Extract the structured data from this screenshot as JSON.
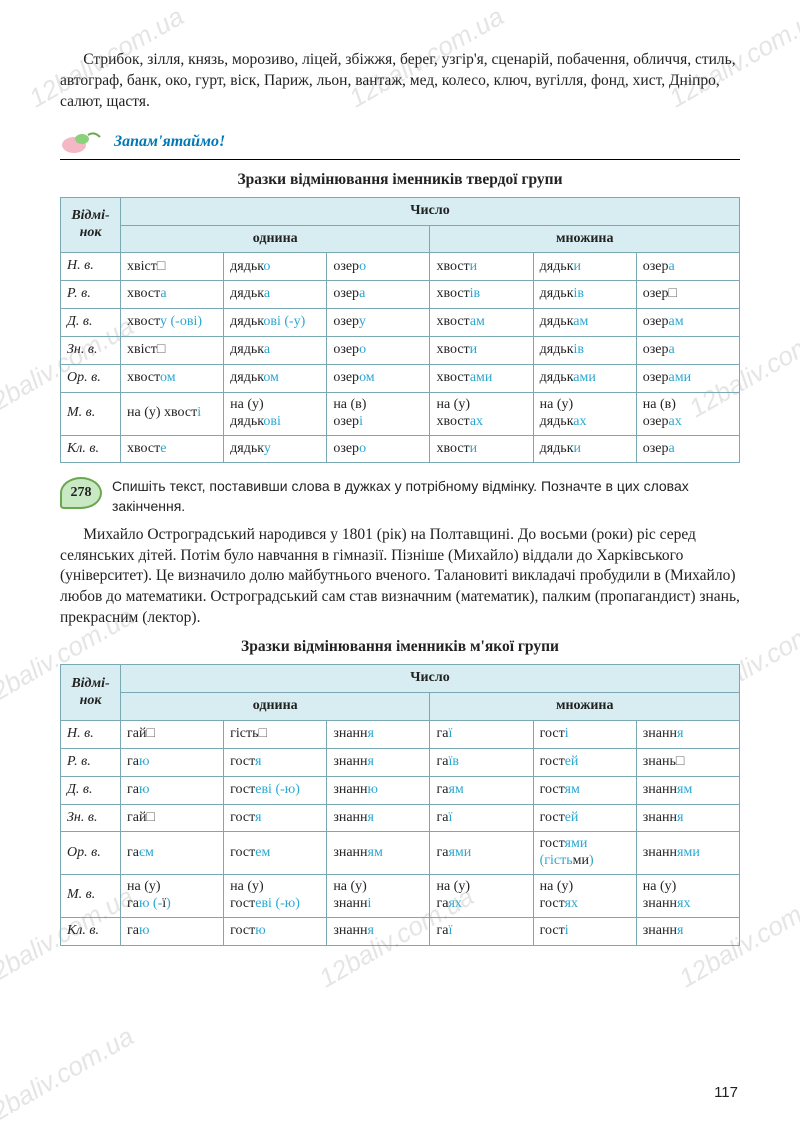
{
  "intro_text": "Стрибок, зілля, князь, морозиво, ліцей, збіжжя, берег, узгір'я, сценарій, побачення, обличчя, стиль, автограф, банк, око, гурт, віск, Париж, льон, вантаж, мед, колесо, ключ, вугілля, фонд, хист, Дніпро, салют, щастя.",
  "remember_label": "Запам'ятаймо!",
  "table1_title": "Зразки відмінювання іменників твердої групи",
  "headers": {
    "case": "Відмі-\nнок",
    "number": "Число",
    "sing": "однина",
    "plur": "множина"
  },
  "cases": [
    "Н. в.",
    "Р. в.",
    "Д. в.",
    "Зн. в.",
    "Ор. в.",
    "М. в.",
    "Кл. в."
  ],
  "t1": {
    "r0": [
      [
        "хвіст",
        "□"
      ],
      [
        "дядьк",
        "о"
      ],
      [
        "озер",
        "о"
      ],
      [
        "хвост",
        "и"
      ],
      [
        "дядьк",
        "и"
      ],
      [
        "озер",
        "а"
      ]
    ],
    "r1": [
      [
        "хвост",
        "а"
      ],
      [
        "дядьк",
        "а"
      ],
      [
        "озер",
        "а"
      ],
      [
        "хвост",
        "ів"
      ],
      [
        "дядьк",
        "ів"
      ],
      [
        "озер",
        "□"
      ]
    ],
    "r2": [
      [
        "хвост",
        "у (-ові)"
      ],
      [
        "дядьк",
        "ові (-у)"
      ],
      [
        "озер",
        "у"
      ],
      [
        "хвост",
        "ам"
      ],
      [
        "дядьк",
        "ам"
      ],
      [
        "озер",
        "ам"
      ]
    ],
    "r3": [
      [
        "хвіст",
        "□"
      ],
      [
        "дядьк",
        "а"
      ],
      [
        "озер",
        "о"
      ],
      [
        "хвост",
        "и"
      ],
      [
        "дядьк",
        "ів"
      ],
      [
        "озер",
        "а"
      ]
    ],
    "r4": [
      [
        "хвост",
        "ом"
      ],
      [
        "дядьк",
        "ом"
      ],
      [
        "озер",
        "ом"
      ],
      [
        "хвост",
        "ами"
      ],
      [
        "дядьк",
        "ами"
      ],
      [
        "озер",
        "ами"
      ]
    ],
    "r5": [
      [
        "на (у) хвост",
        "і"
      ],
      [
        "на (у)\nдядьк",
        "ові"
      ],
      [
        "на (в)\nозер",
        "і"
      ],
      [
        "на (у)\nхвост",
        "ах"
      ],
      [
        "на (у)\nдядьк",
        "ах"
      ],
      [
        "на (в)\nозер",
        "ах"
      ]
    ],
    "r6": [
      [
        "хвост",
        "е"
      ],
      [
        "дядьк",
        "у"
      ],
      [
        "озер",
        "о"
      ],
      [
        "хвост",
        "и"
      ],
      [
        "дядьк",
        "и"
      ],
      [
        "озер",
        "а"
      ]
    ]
  },
  "ex_num": "278",
  "ex_text": "Спишіть текст, поставивши слова в дужках у потрібному відмінку. Позначте в цих словах закінчення.",
  "body_text": "Михайло Остроградський народився у 1801 (рік) на Полтавщині. До восьми (роки) ріс серед селянських дітей. Потім було навчання в гімназії. Пізніше (Михайло) віддали до Харківського (університет). Це визначило долю майбутнього вченого. Талановиті викладачі пробудили в (Михайло) любов до математики. Остроградський сам став визначним (математик), палким (пропагандист) знань, прекрасним (лектор).",
  "table2_title": "Зразки відмінювання іменників м'якої групи",
  "t2": {
    "r0": [
      [
        "гай",
        "□"
      ],
      [
        "гість",
        "□"
      ],
      [
        "знанн",
        "я"
      ],
      [
        "га",
        "ї"
      ],
      [
        "гост",
        "і"
      ],
      [
        "знанн",
        "я"
      ]
    ],
    "r1": [
      [
        "га",
        "ю"
      ],
      [
        "гост",
        "я"
      ],
      [
        "знанн",
        "я"
      ],
      [
        "га",
        "їв"
      ],
      [
        "гост",
        "ей"
      ],
      [
        "знань",
        "□"
      ]
    ],
    "r2": [
      [
        "га",
        "ю"
      ],
      [
        "гост",
        "еві (-ю)"
      ],
      [
        "знанн",
        "ю"
      ],
      [
        "га",
        "ям"
      ],
      [
        "гост",
        "ям"
      ],
      [
        "знанн",
        "ям"
      ]
    ],
    "r3": [
      [
        "гай",
        "□"
      ],
      [
        "гост",
        "я"
      ],
      [
        "знанн",
        "я"
      ],
      [
        "га",
        "ї"
      ],
      [
        "гост",
        "ей"
      ],
      [
        "знанн",
        "я"
      ]
    ],
    "r4": [
      [
        "га",
        "єм"
      ],
      [
        "гост",
        "ем"
      ],
      [
        "знанн",
        "ям"
      ],
      [
        "га",
        "ями"
      ],
      [
        "гост",
        "ями\n(гість",
        "ми",
        ")"
      ],
      [
        "знанн",
        "ями"
      ]
    ],
    "r5": [
      [
        "на (у)\nга",
        "ю (-",
        "ї",
        ")"
      ],
      [
        "на (у)\nгост",
        "еві (-ю)"
      ],
      [
        "на (у)\nзнанн",
        "і"
      ],
      [
        "на (у)\nга",
        "ях"
      ],
      [
        "на (у)\nгост",
        "ях"
      ],
      [
        "на (у)\nзнанн",
        "ях"
      ]
    ],
    "r6": [
      [
        "га",
        "ю"
      ],
      [
        "гост",
        "ю"
      ],
      [
        "знанн",
        "я"
      ],
      [
        "га",
        "ї"
      ],
      [
        "гост",
        "і"
      ],
      [
        "знанн",
        "я"
      ]
    ]
  },
  "page_number": "117",
  "watermark": "12baliv.com.ua",
  "colors": {
    "header_bg": "#d8edf1",
    "border": "#7aa9b5",
    "highlight": "#2aa7d1",
    "remember": "#0077b6"
  }
}
